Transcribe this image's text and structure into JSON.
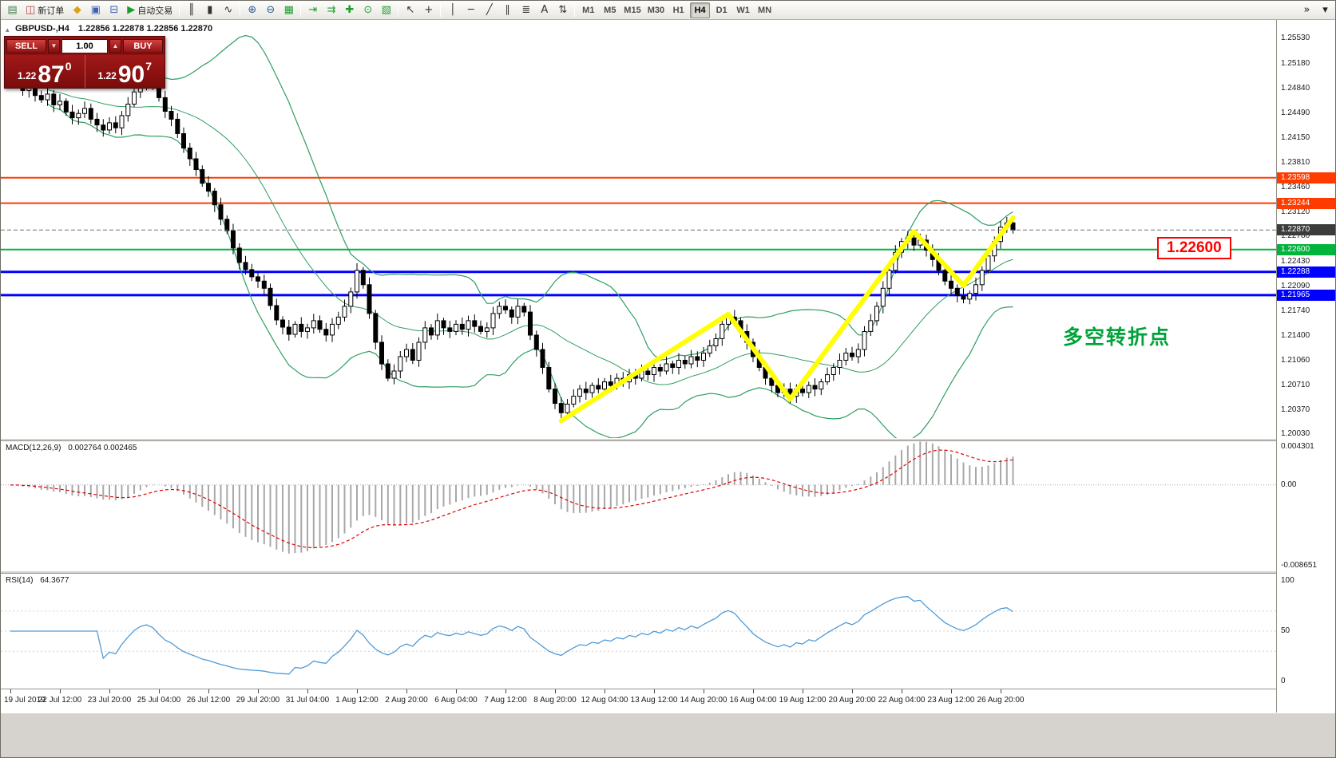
{
  "toolbar": {
    "items": [
      {
        "name": "new-chart-button",
        "glyph": "▤",
        "color": "#3f7f46"
      },
      {
        "name": "new-order-button",
        "glyph": "◫",
        "color": "#b23b3b",
        "label": "新订单"
      },
      {
        "name": "metaeditor-button",
        "glyph": "◆",
        "color": "#e0a019"
      },
      {
        "name": "data-window-button",
        "glyph": "▣",
        "color": "#3b62b2"
      },
      {
        "name": "history-center-button",
        "glyph": "⊟",
        "color": "#3b62b2"
      },
      {
        "name": "autotrading-button",
        "glyph": "▶",
        "color": "#1f9d2c",
        "label": "自动交易"
      },
      {
        "sep": true
      },
      {
        "name": "bar-chart-button",
        "glyph": "║",
        "color": "#333333"
      },
      {
        "name": "candlestick-chart-button",
        "glyph": "▮",
        "color": "#333333"
      },
      {
        "name": "line-chart-button",
        "glyph": "∿",
        "color": "#333333"
      },
      {
        "sep": true
      },
      {
        "name": "zoom-in-button",
        "glyph": "⊕",
        "color": "#2a5d9e"
      },
      {
        "name": "zoom-out-button",
        "glyph": "⊖",
        "color": "#2a5d9e"
      },
      {
        "name": "grid-toggle-button",
        "glyph": "▦",
        "color": "#1f9d2c"
      },
      {
        "sep": true
      },
      {
        "name": "auto-scroll-button",
        "glyph": "⇥",
        "color": "#1f9d2c"
      },
      {
        "name": "chart-shift-button",
        "glyph": "⇉",
        "color": "#1f9d2c"
      },
      {
        "name": "indicators-button",
        "glyph": "✚",
        "color": "#1f9d2c"
      },
      {
        "name": "periods-button",
        "glyph": "⊙",
        "color": "#1f9d2c"
      },
      {
        "name": "templates-button",
        "glyph": "▧",
        "color": "#1f9d2c"
      },
      {
        "sep": true
      },
      {
        "name": "cursor-button",
        "glyph": "↖",
        "color": "#333333"
      },
      {
        "name": "crosshair-button",
        "glyph": "+",
        "color": "#333333"
      },
      {
        "sep": true
      },
      {
        "name": "vertical-line-button",
        "glyph": "│",
        "color": "#333333"
      },
      {
        "name": "horizontal-line-button",
        "glyph": "─",
        "color": "#333333"
      },
      {
        "name": "trendline-button",
        "glyph": "╱",
        "color": "#333333"
      },
      {
        "name": "channel-button",
        "glyph": "∥",
        "color": "#333333"
      },
      {
        "name": "fibonacci-button",
        "glyph": "≣",
        "color": "#333333"
      },
      {
        "name": "text-button",
        "glyph": "A",
        "color": "#333333"
      },
      {
        "name": "arrows-button",
        "glyph": "⇅",
        "color": "#333333"
      },
      {
        "sep": true
      }
    ],
    "timeframes": [
      "M1",
      "M5",
      "M15",
      "M30",
      "H1",
      "H4",
      "D1",
      "W1",
      "MN"
    ],
    "active_timeframe": "H4",
    "overflow": [
      {
        "name": "toolbar-overflow-button",
        "glyph": "»"
      },
      {
        "name": "toolbar-customize-button",
        "glyph": "▾"
      }
    ]
  },
  "trade_panel": {
    "sell_label": "SELL",
    "buy_label": "BUY",
    "volume": "1.00",
    "sell_price_main": "1.22",
    "sell_price_big": "87",
    "sell_price_sup": "0",
    "buy_price_main": "1.22",
    "buy_price_big": "90",
    "buy_price_sup": "7"
  },
  "chart": {
    "symbol_title": "GBPUSD-,H4",
    "ohlc_text": "1.22856 1.22878 1.22856 1.22870",
    "annotation_text": "多空转折点",
    "price_tag_text": "1.22600",
    "axis_labels": [
      "1.25530",
      "1.25180",
      "1.24840",
      "1.24490",
      "1.24150",
      "1.23810",
      "1.23460",
      "1.23120",
      "1.22780",
      "1.22430",
      "1.22090",
      "1.21740",
      "1.21400",
      "1.21060",
      "1.20710",
      "1.20370",
      "1.20030"
    ],
    "hlines": [
      {
        "price": 1.23598,
        "label": "1.23598",
        "color": "#ff3c00",
        "width": 2
      },
      {
        "price": 1.23244,
        "label": "1.23244",
        "color": "#ff3c00",
        "width": 2
      },
      {
        "price": 1.226,
        "label": "1.22600",
        "color": "#00b43c",
        "width": 2
      },
      {
        "price": 1.22288,
        "label": "1.22288",
        "color": "#0000ff",
        "width": 3
      },
      {
        "price": 1.21965,
        "label": "1.21965",
        "color": "#0000ff",
        "width": 3
      }
    ],
    "current_price": {
      "price": 1.2287,
      "label": "1.22870",
      "color": "#3c3c3c"
    }
  },
  "macd_pane": {
    "label": "MACD(12,26,9)",
    "values": "0.002764 0.002465",
    "axis_labels": [
      "0.004301",
      "0.00",
      "-0.008651"
    ]
  },
  "rsi_pane": {
    "label": "RSI(14)",
    "value": "64.3677",
    "axis_labels": [
      "100",
      "50",
      "0"
    ]
  },
  "time_axis": {
    "bars_per_label": 8,
    "labels": [
      "19 Jul 2019",
      "22 Jul 12:00",
      "23 Jul 20:00",
      "25 Jul 04:00",
      "26 Jul 12:00",
      "29 Jul 20:00",
      "31 Jul 04:00",
      "1 Aug 12:00",
      "2 Aug 20:00",
      "6 Aug 04:00",
      "7 Aug 12:00",
      "8 Aug 20:00",
      "12 Aug 04:00",
      "13 Aug 12:00",
      "14 Aug 20:00",
      "16 Aug 04:00",
      "19 Aug 12:00",
      "20 Aug 20:00",
      "22 Aug 04:00",
      "23 Aug 12:00",
      "26 Aug 20:00"
    ]
  },
  "chart_data": {
    "type": "candlestick",
    "symbol": "GBPUSD",
    "timeframe": "H4",
    "price_range": [
      1.19979,
      1.2579
    ],
    "macd_range": [
      -0.0092,
      0.0047
    ],
    "rsi_range": [
      0,
      100
    ],
    "indicators": {
      "bollinger": {
        "period": 20,
        "deviation": 2
      },
      "macd": {
        "fast": 12,
        "slow": 26,
        "signal": 9
      },
      "rsi": {
        "period": 14
      }
    },
    "closes": [
      1.2498,
      1.2492,
      1.2481,
      1.2486,
      1.2474,
      1.2468,
      1.2476,
      1.2461,
      1.2466,
      1.2451,
      1.2443,
      1.2449,
      1.2456,
      1.2441,
      1.2433,
      1.2426,
      1.2436,
      1.2429,
      1.2446,
      1.2462,
      1.2479,
      1.2491,
      1.2496,
      1.2489,
      1.2471,
      1.2452,
      1.2441,
      1.2421,
      1.2401,
      1.2386,
      1.2371,
      1.2352,
      1.2341,
      1.2322,
      1.2302,
      1.2286,
      1.2262,
      1.2242,
      1.2232,
      1.2222,
      1.2216,
      1.2206,
      1.2182,
      1.2162,
      1.2152,
      1.2142,
      1.2156,
      1.2146,
      1.2151,
      1.2161,
      1.2149,
      1.2141,
      1.2156,
      1.2166,
      1.2181,
      1.2201,
      1.2231,
      1.2211,
      1.2171,
      1.2131,
      1.2101,
      1.2081,
      1.2091,
      1.2111,
      1.2121,
      1.2106,
      1.2131,
      1.2151,
      1.2141,
      1.2161,
      1.2151,
      1.2146,
      1.2156,
      1.2149,
      1.2161,
      1.2153,
      1.2146,
      1.2151,
      1.2171,
      1.2181,
      1.2176,
      1.2166,
      1.2181,
      1.2173,
      1.2141,
      1.2121,
      1.2096,
      1.2066,
      1.2046,
      1.2033,
      1.2045,
      1.2056,
      1.2066,
      1.2061,
      1.2071,
      1.2066,
      1.2076,
      1.2071,
      1.2081,
      1.2076,
      1.2086,
      1.2081,
      1.2091,
      1.2086,
      1.2096,
      1.2091,
      1.2101,
      1.2096,
      1.2106,
      1.2101,
      1.2111,
      1.2106,
      1.2116,
      1.2126,
      1.2136,
      1.2156,
      1.2166,
      1.2161,
      1.2146,
      1.2131,
      1.2111,
      1.2096,
      1.2081,
      1.2071,
      1.2061,
      1.2066,
      1.2056,
      1.2066,
      1.2061,
      1.2071,
      1.2066,
      1.2076,
      1.2086,
      1.2096,
      1.2106,
      1.2116,
      1.2111,
      1.2121,
      1.2146,
      1.2161,
      1.2181,
      1.2206,
      1.2231,
      1.2256,
      1.2271,
      1.2276,
      1.2266,
      1.2273,
      1.2259,
      1.2246,
      1.2231,
      1.2216,
      1.2206,
      1.2196,
      1.2191,
      1.2199,
      1.2211,
      1.2231,
      1.2251,
      1.2271,
      1.2291,
      1.2297,
      1.2287
    ],
    "zigzag": [
      {
        "bar": 89,
        "price": 1.2022
      },
      {
        "bar": 116,
        "price": 1.217
      },
      {
        "bar": 126,
        "price": 1.2052
      },
      {
        "bar": 146,
        "price": 1.2285
      },
      {
        "bar": 154,
        "price": 1.221
      },
      {
        "bar": 162,
        "price": 1.2304
      }
    ]
  }
}
